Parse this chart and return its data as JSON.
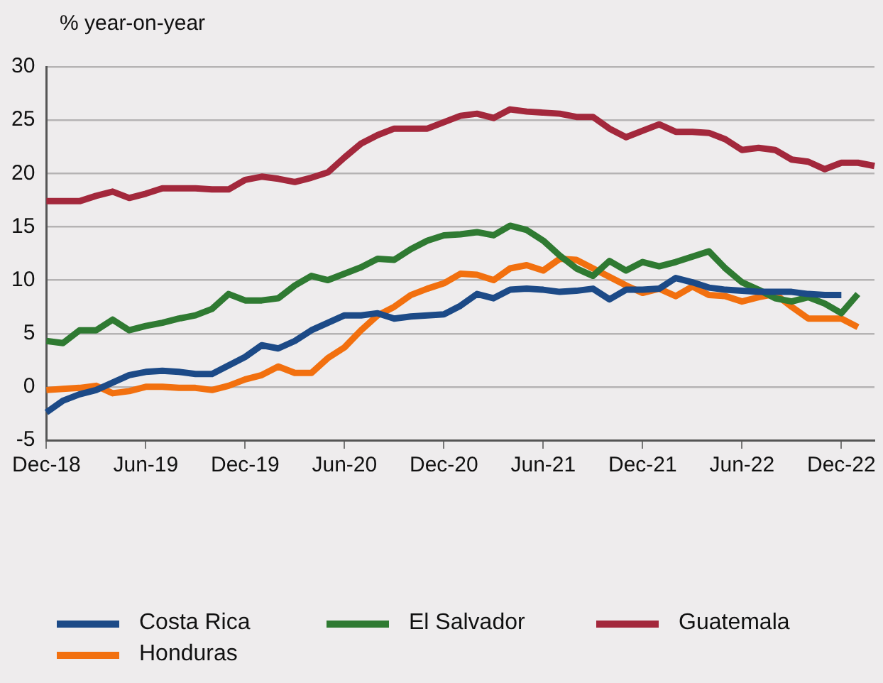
{
  "chart_data": {
    "type": "line",
    "ylabel": "% year-on-year",
    "categories": [
      "Dec-18",
      null,
      null,
      null,
      null,
      null,
      "Jun-19",
      null,
      null,
      null,
      null,
      null,
      "Dec-19",
      null,
      null,
      null,
      null,
      null,
      "Jun-20",
      null,
      null,
      null,
      null,
      null,
      "Dec-20",
      null,
      null,
      null,
      null,
      null,
      "Jun-21",
      null,
      null,
      null,
      null,
      null,
      "Dec-21",
      null,
      null,
      null,
      null,
      null,
      "Jun-22",
      null,
      null,
      null,
      null,
      null,
      "Dec-22",
      null,
      null
    ],
    "series": [
      {
        "name": "Costa Rica",
        "color": "#1c4a87",
        "values": [
          -2.4,
          -1.3,
          -0.7,
          -0.3,
          0.4,
          1.1,
          1.4,
          1.5,
          1.4,
          1.2,
          1.2,
          2.0,
          2.8,
          3.9,
          3.6,
          4.3,
          5.3,
          6.0,
          6.7,
          6.7,
          6.9,
          6.4,
          6.6,
          6.7,
          6.8,
          7.6,
          8.7,
          8.3,
          9.1,
          9.2,
          9.1,
          8.9,
          9.0,
          9.2,
          8.2,
          9.1,
          9.1,
          9.2,
          10.2,
          9.8,
          9.3,
          9.1,
          9.0,
          8.9,
          8.9,
          8.9,
          8.7,
          8.6,
          8.6,
          null,
          null
        ]
      },
      {
        "name": "El Salvador",
        "color": "#2f7a32",
        "values": [
          4.3,
          4.1,
          5.3,
          5.3,
          6.3,
          5.3,
          5.7,
          6.0,
          6.4,
          6.7,
          7.3,
          8.7,
          8.1,
          8.1,
          8.3,
          9.5,
          10.4,
          10.0,
          10.6,
          11.2,
          12.0,
          11.9,
          12.9,
          13.7,
          14.2,
          14.3,
          14.5,
          14.2,
          15.1,
          14.7,
          13.7,
          12.3,
          11.1,
          10.4,
          11.8,
          10.9,
          11.7,
          11.3,
          11.7,
          12.2,
          12.7,
          11.1,
          9.8,
          9.1,
          8.3,
          8.0,
          8.4,
          7.8,
          6.9,
          8.7,
          null
        ]
      },
      {
        "name": "Guatemala",
        "color": "#a3283c",
        "values": [
          17.4,
          17.4,
          17.4,
          17.9,
          18.3,
          17.7,
          18.1,
          18.6,
          18.6,
          18.6,
          18.5,
          18.5,
          19.4,
          19.7,
          19.5,
          19.2,
          19.6,
          20.1,
          21.5,
          22.8,
          23.6,
          24.2,
          24.2,
          24.2,
          24.8,
          25.4,
          25.6,
          25.2,
          26.0,
          25.8,
          25.7,
          25.6,
          25.3,
          25.3,
          24.2,
          23.4,
          24.0,
          24.6,
          23.9,
          23.9,
          23.8,
          23.2,
          22.2,
          22.4,
          22.2,
          21.3,
          21.1,
          20.4,
          21.0,
          21.0,
          20.7
        ]
      },
      {
        "name": "Honduras",
        "color": "#f2700f",
        "values": [
          -0.3,
          -0.2,
          -0.1,
          0.1,
          -0.6,
          -0.4,
          0,
          0,
          -0.1,
          -0.1,
          -0.3,
          0.1,
          0.7,
          1.1,
          1.9,
          1.3,
          1.3,
          2.7,
          3.7,
          5.3,
          6.7,
          7.5,
          8.6,
          9.2,
          9.7,
          10.6,
          10.5,
          10.0,
          11.1,
          11.4,
          10.9,
          12.0,
          11.9,
          11.1,
          10.3,
          9.5,
          8.8,
          9.2,
          8.5,
          9.4,
          8.6,
          8.5,
          8.0,
          8.4,
          8.7,
          7.5,
          6.4,
          6.4,
          6.4,
          5.6,
          null
        ]
      }
    ],
    "ylim": [
      -5,
      30
    ],
    "yticks": [
      -5,
      0,
      5,
      10,
      15,
      20,
      25,
      30
    ],
    "grid": "y",
    "legend": "bottom",
    "marker": "none",
    "line_style": "solid"
  }
}
